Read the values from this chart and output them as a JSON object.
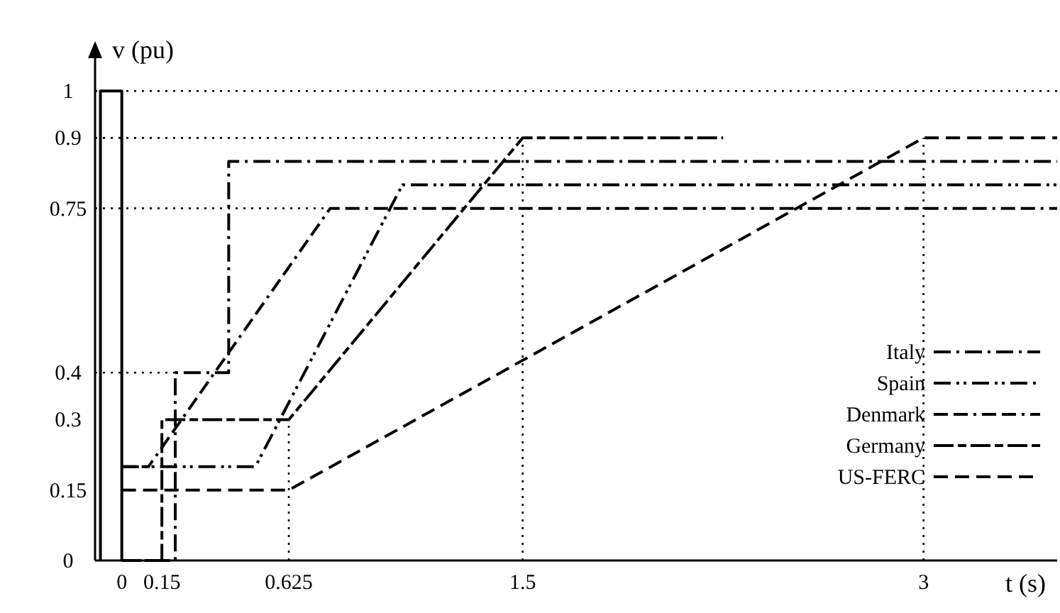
{
  "chart_data": {
    "type": "line",
    "xlabel": "t (s)",
    "ylabel": "v (pu)",
    "xlim": [
      -0.1,
      3.5
    ],
    "ylim": [
      0,
      1.1
    ],
    "xticks": [
      0,
      0.15,
      0.625,
      1.5,
      3
    ],
    "yticks": [
      0,
      0.15,
      0.3,
      0.4,
      0.75,
      0.9,
      1
    ],
    "grid": false,
    "legend": "bottom right",
    "line_style": "dashed",
    "marker": "none",
    "ref_lines": [
      {
        "axis": "y",
        "value": 1,
        "line_style": "dotted"
      },
      {
        "axis": "y",
        "value": 0.9,
        "line_style": "dotted"
      },
      {
        "axis": "y",
        "value": 0.75,
        "line_style": "dotted"
      },
      {
        "axis": "y",
        "value": 0.4,
        "line_style": "dotted"
      },
      {
        "axis": "x",
        "value": 0.625,
        "line_style": "dotted"
      },
      {
        "axis": "x",
        "value": 1.5,
        "line_style": "dotted"
      },
      {
        "axis": "x",
        "value": 3,
        "line_style": "dotted"
      }
    ],
    "series": [
      {
        "color": "#000000",
        "line_style": "solid",
        "x": [
          -0.08,
          -0.08,
          0,
          0
        ],
        "values": [
          0,
          1,
          1,
          0
        ]
      },
      {
        "name": "Italy",
        "color": "#000000",
        "x": [
          0,
          0.2,
          0.2,
          0.4,
          0.4,
          3.5
        ],
        "values": [
          0,
          0,
          0.4,
          0.4,
          0.85,
          0.85
        ]
      },
      {
        "name": "Spain",
        "color": "#000000",
        "x": [
          0,
          0.5,
          1.05,
          3.5
        ],
        "values": [
          0.2,
          0.2,
          0.8,
          0.8
        ]
      },
      {
        "name": "Denmark",
        "color": "#000000",
        "x": [
          0,
          0.1,
          0.78,
          3.5
        ],
        "values": [
          0.2,
          0.2,
          0.75,
          0.75
        ]
      },
      {
        "name": "Germany",
        "color": "#000000",
        "x": [
          0,
          0.15,
          0.15,
          0.625,
          1.5,
          2.25
        ],
        "values": [
          0,
          0,
          0.3,
          0.3,
          0.9,
          0.9
        ]
      },
      {
        "name": "US-FERC",
        "color": "#000000",
        "x": [
          0,
          0.625,
          3,
          3.5
        ],
        "values": [
          0.15,
          0.15,
          0.9,
          0.9
        ]
      }
    ]
  }
}
